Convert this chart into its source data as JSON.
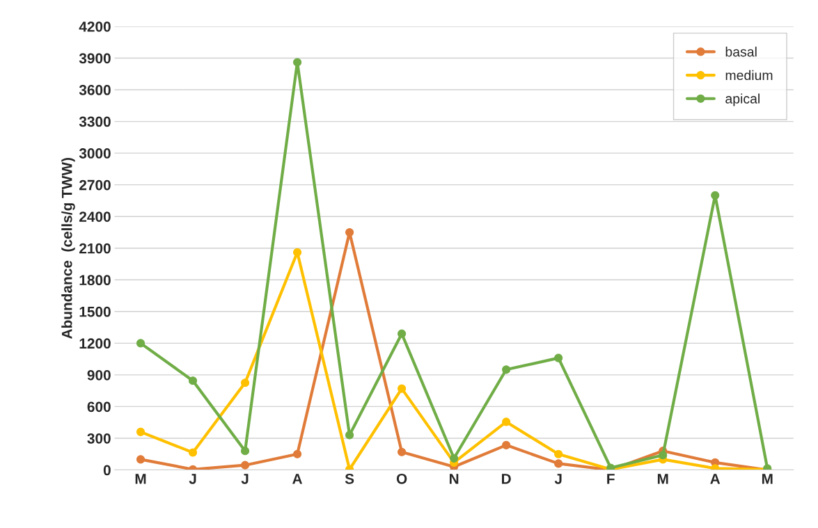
{
  "chart_data": {
    "type": "line",
    "ylabel": "Abundance  (cells/g TWW)",
    "categories": [
      "M",
      "J",
      "J",
      "A",
      "S",
      "O",
      "N",
      "D",
      "J",
      "F",
      "M",
      "A",
      "M"
    ],
    "series": [
      {
        "name": "basal",
        "color": "#e07b39",
        "values": [
          100,
          5,
          45,
          150,
          2250,
          170,
          30,
          235,
          60,
          0,
          180,
          70,
          0
        ]
      },
      {
        "name": "medium",
        "color": "#ffc000",
        "values": [
          360,
          165,
          825,
          2060,
          5,
          770,
          70,
          455,
          150,
          5,
          100,
          15,
          5
        ]
      },
      {
        "name": "apical",
        "color": "#70ad47",
        "values": [
          1200,
          845,
          180,
          3860,
          330,
          1290,
          110,
          950,
          1060,
          20,
          140,
          2600,
          15
        ]
      }
    ],
    "ylim": [
      0,
      4200
    ],
    "yticks": [
      0,
      300,
      600,
      900,
      1200,
      1500,
      1800,
      2100,
      2400,
      2700,
      3000,
      3300,
      3600,
      3900,
      4200
    ],
    "grid": "y",
    "legend": "top right",
    "marker": "circle",
    "line_style": "solid"
  }
}
